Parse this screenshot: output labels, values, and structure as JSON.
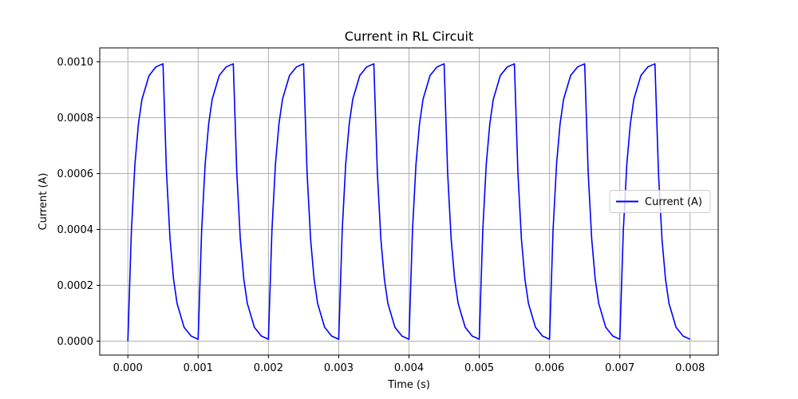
{
  "chart_data": {
    "type": "line",
    "title": "Current in RL Circuit",
    "xlabel": "Time (s)",
    "ylabel": "Current (A)",
    "xlim": [
      -0.0004,
      0.0084
    ],
    "ylim": [
      -5e-05,
      0.00105
    ],
    "xticks": [
      "0.000",
      "0.001",
      "0.002",
      "0.003",
      "0.004",
      "0.005",
      "0.006",
      "0.007",
      "0.008"
    ],
    "yticks": [
      "0.0000",
      "0.0002",
      "0.0004",
      "0.0006",
      "0.0008",
      "0.0010"
    ],
    "grid": true,
    "legend": {
      "entries": [
        "Current (A)"
      ],
      "placement": "center-right"
    },
    "series": [
      {
        "name": "Current (A)",
        "color": "#0000ff",
        "x": [
          0.0,
          5e-05,
          0.0001,
          0.00015,
          0.0002,
          0.0003,
          0.0004,
          0.0005,
          0.00055,
          0.0006,
          0.00065,
          0.0007,
          0.0008,
          0.0009,
          0.001,
          0.00105,
          0.0011,
          0.00115,
          0.0012,
          0.0013,
          0.0014,
          0.0015,
          0.00155,
          0.0016,
          0.00165,
          0.0017,
          0.0018,
          0.0019,
          0.002,
          0.00205,
          0.0021,
          0.00215,
          0.0022,
          0.0023,
          0.0024,
          0.0025,
          0.00255,
          0.0026,
          0.00265,
          0.0027,
          0.0028,
          0.0029,
          0.003,
          0.00305,
          0.0031,
          0.00315,
          0.0032,
          0.0033,
          0.0034,
          0.0035,
          0.00355,
          0.0036,
          0.00365,
          0.0037,
          0.0038,
          0.0039,
          0.004,
          0.00405,
          0.0041,
          0.00415,
          0.0042,
          0.0043,
          0.0044,
          0.0045,
          0.00455,
          0.0046,
          0.00465,
          0.0047,
          0.0048,
          0.0049,
          0.005,
          0.00505,
          0.0051,
          0.00515,
          0.0052,
          0.0053,
          0.0054,
          0.0055,
          0.00555,
          0.0056,
          0.00565,
          0.0057,
          0.0058,
          0.0059,
          0.006,
          0.00605,
          0.0061,
          0.00615,
          0.0062,
          0.0063,
          0.0064,
          0.0065,
          0.00655,
          0.0066,
          0.00665,
          0.0067,
          0.0068,
          0.0069,
          0.007,
          0.00705,
          0.0071,
          0.00715,
          0.0072,
          0.0073,
          0.0074,
          0.0075,
          0.00755,
          0.0076,
          0.00765,
          0.0077,
          0.0078,
          0.0079,
          0.008
        ],
        "y": [
          0.0,
          0.000393,
          0.000632,
          0.000777,
          0.000865,
          0.00095,
          0.000982,
          0.000993,
          0.000603,
          0.000366,
          0.000222,
          0.000135,
          4.96e-05,
          1.83e-05,
          6.7e-06,
          0.000397,
          0.000634,
          0.000778,
          0.000866,
          0.000951,
          0.000982,
          0.000993,
          0.000603,
          0.000366,
          0.000222,
          0.000135,
          4.96e-05,
          1.83e-05,
          6.7e-06,
          0.000397,
          0.000634,
          0.000778,
          0.000866,
          0.000951,
          0.000982,
          0.000993,
          0.000603,
          0.000366,
          0.000222,
          0.000135,
          4.96e-05,
          1.83e-05,
          6.7e-06,
          0.000397,
          0.000634,
          0.000778,
          0.000866,
          0.000951,
          0.000982,
          0.000993,
          0.000603,
          0.000366,
          0.000222,
          0.000135,
          4.96e-05,
          1.83e-05,
          6.7e-06,
          0.000397,
          0.000634,
          0.000778,
          0.000866,
          0.000951,
          0.000982,
          0.000993,
          0.000603,
          0.000366,
          0.000222,
          0.000135,
          4.96e-05,
          1.83e-05,
          6.7e-06,
          0.000397,
          0.000634,
          0.000778,
          0.000866,
          0.000951,
          0.000982,
          0.000993,
          0.000603,
          0.000366,
          0.000222,
          0.000135,
          4.96e-05,
          1.83e-05,
          6.7e-06,
          0.000397,
          0.000634,
          0.000778,
          0.000866,
          0.000951,
          0.000982,
          0.000993,
          0.000603,
          0.000366,
          0.000222,
          0.000135,
          4.96e-05,
          1.83e-05,
          6.7e-06,
          0.000397,
          0.000634,
          0.000778,
          0.000866,
          0.000951,
          0.000982,
          0.000993,
          0.000603,
          0.000366,
          0.000222,
          0.000135,
          4.96e-05,
          1.83e-05,
          6.7e-06
        ]
      }
    ]
  },
  "colors": {
    "series_line": "#0000ff",
    "grid": "#b0b0b0",
    "axes": "#000000",
    "legend_border": "#cccccc"
  }
}
